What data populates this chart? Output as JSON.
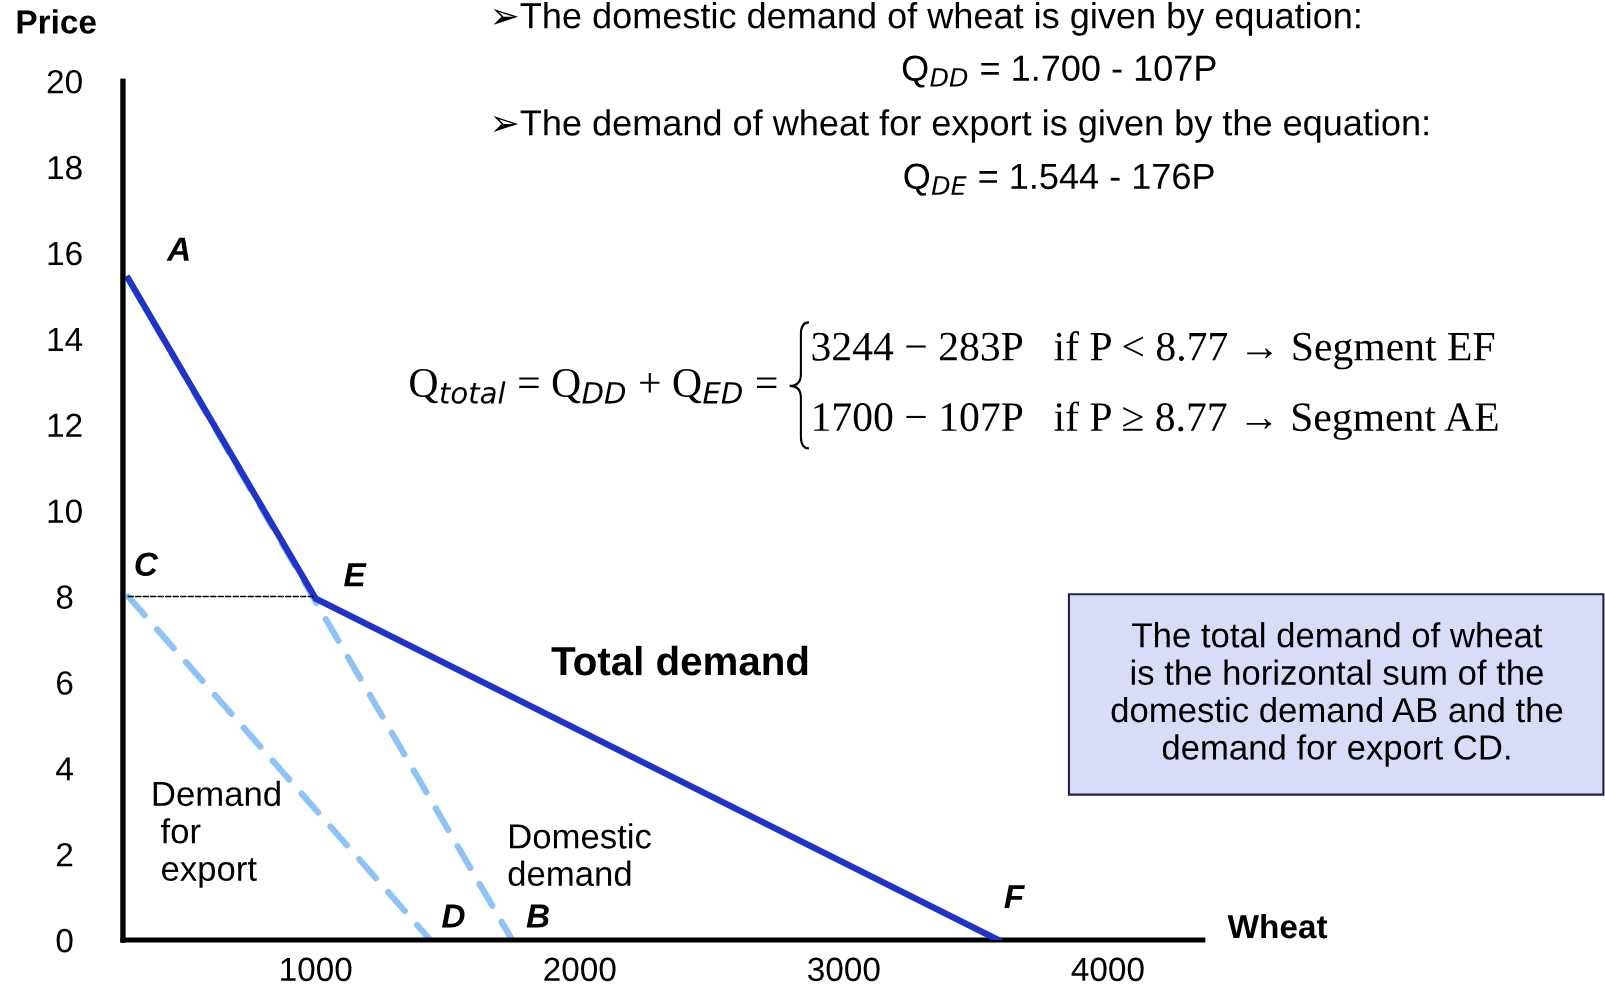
{
  "chart_data": {
    "type": "line",
    "xlabel": "Wheat",
    "ylabel": "Price",
    "xlim": [
      270,
      4360
    ],
    "xticks": [
      1000,
      2000,
      3000,
      4000
    ],
    "ylim": [
      0,
      20
    ],
    "yticks": [
      0,
      2,
      4,
      6,
      8,
      10,
      12,
      14,
      16,
      18,
      20
    ],
    "grid": false,
    "legend": false,
    "ref_lines": [
      {
        "axis": "x",
        "value": 270,
        "color": "#000000",
        "line_style": "solid"
      }
    ],
    "series": [
      {
        "color": "#1f34c6",
        "line_style": "solid",
        "x": [
          290,
          1000,
          3585
        ],
        "values": [
          15.4,
          7.95,
          0
        ]
      },
      {
        "color": "#8fc3f5",
        "line_style": "dashed",
        "x": [
          290,
          1744
        ],
        "values": [
          15.4,
          0
        ]
      },
      {
        "color": "#8fc3f5",
        "line_style": "dashed",
        "x": [
          290,
          1434
        ],
        "values": [
          8.0,
          0
        ]
      },
      {
        "color": "#000000",
        "line_style": "dotted",
        "x": [
          290,
          1000
        ],
        "values": [
          8.0,
          8.0
        ]
      }
    ],
    "annotations": [
      {
        "text": "A",
        "x": 290,
        "y": 15.4
      },
      {
        "text": "C",
        "x": 290,
        "y": 8.0
      },
      {
        "text": "E",
        "x": 1000,
        "y": 7.95
      },
      {
        "text": "D",
        "x": 1434,
        "y": 0
      },
      {
        "text": "B",
        "x": 1744,
        "y": 0
      },
      {
        "text": "F",
        "x": 3585,
        "y": 0
      },
      "Total demand",
      "Demand\n for\n export",
      "Domestic\ndemand",
      "➢The domestic demand of wheat is given by equation:",
      "Q$_{DD}$ = 1.700 - 107P",
      "➢The demand of wheat for export is given by the equation:",
      "Q$_{DE}$ = 1.544 - 176P",
      "Q$_{total}$ = Q$_{DD}$ + Q$_{ED}$ =",
      "3244 − 283P   if P < 8.77 → Segment EF",
      "1700 − 107P   if P ≥ 8.77 → Segment AE",
      "The total demand of wheat\nis the horizontal sum of the\ndomestic demand AB and the\ndemand for export CD."
    ]
  }
}
